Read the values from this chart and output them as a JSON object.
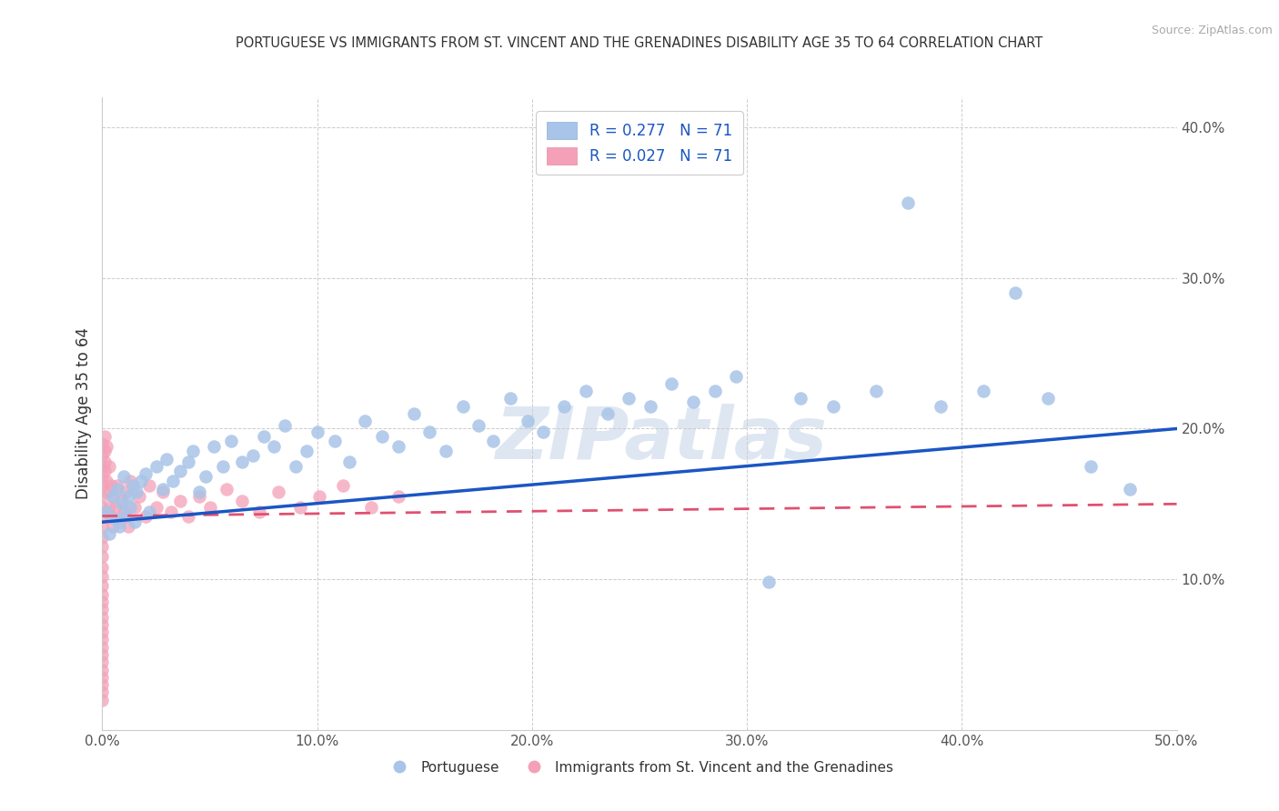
{
  "title": "PORTUGUESE VS IMMIGRANTS FROM ST. VINCENT AND THE GRENADINES DISABILITY AGE 35 TO 64 CORRELATION CHART",
  "source": "Source: ZipAtlas.com",
  "ylabel": "Disability Age 35 to 64",
  "xlim": [
    0.0,
    0.5
  ],
  "ylim": [
    0.0,
    0.42
  ],
  "xticks": [
    0.0,
    0.1,
    0.2,
    0.3,
    0.4,
    0.5
  ],
  "yticks": [
    0.0,
    0.1,
    0.2,
    0.3,
    0.4
  ],
  "xticklabels": [
    "0.0%",
    "10.0%",
    "20.0%",
    "30.0%",
    "40.0%",
    "50.0%"
  ],
  "yticklabels_right": [
    "",
    "10.0%",
    "20.0%",
    "30.0%",
    "40.0%"
  ],
  "r_portuguese": 0.277,
  "n_portuguese": 71,
  "r_immigrants": 0.027,
  "n_immigrants": 71,
  "blue_color": "#a8c4e8",
  "pink_color": "#f4a0b8",
  "blue_line_color": "#1a56c4",
  "pink_line_color": "#e05070",
  "legend_label_portuguese": "Portuguese",
  "legend_label_immigrants": "Immigrants from St. Vincent and the Grenadines",
  "portuguese_x": [
    0.002,
    0.003,
    0.005,
    0.006,
    0.007,
    0.008,
    0.009,
    0.01,
    0.011,
    0.012,
    0.013,
    0.014,
    0.015,
    0.016,
    0.018,
    0.02,
    0.022,
    0.025,
    0.028,
    0.03,
    0.033,
    0.036,
    0.04,
    0.042,
    0.045,
    0.048,
    0.052,
    0.056,
    0.06,
    0.065,
    0.07,
    0.075,
    0.08,
    0.085,
    0.09,
    0.095,
    0.1,
    0.108,
    0.115,
    0.122,
    0.13,
    0.138,
    0.145,
    0.152,
    0.16,
    0.168,
    0.175,
    0.182,
    0.19,
    0.198,
    0.205,
    0.215,
    0.225,
    0.235,
    0.245,
    0.255,
    0.265,
    0.275,
    0.285,
    0.295,
    0.31,
    0.325,
    0.34,
    0.36,
    0.375,
    0.39,
    0.41,
    0.425,
    0.44,
    0.46,
    0.478
  ],
  "portuguese_y": [
    0.145,
    0.13,
    0.155,
    0.14,
    0.16,
    0.135,
    0.15,
    0.168,
    0.142,
    0.155,
    0.148,
    0.162,
    0.138,
    0.158,
    0.165,
    0.17,
    0.145,
    0.175,
    0.16,
    0.18,
    0.165,
    0.172,
    0.178,
    0.185,
    0.158,
    0.168,
    0.188,
    0.175,
    0.192,
    0.178,
    0.182,
    0.195,
    0.188,
    0.202,
    0.175,
    0.185,
    0.198,
    0.192,
    0.178,
    0.205,
    0.195,
    0.188,
    0.21,
    0.198,
    0.185,
    0.215,
    0.202,
    0.192,
    0.22,
    0.205,
    0.198,
    0.215,
    0.225,
    0.21,
    0.22,
    0.215,
    0.23,
    0.218,
    0.225,
    0.235,
    0.098,
    0.22,
    0.215,
    0.225,
    0.35,
    0.215,
    0.225,
    0.29,
    0.22,
    0.175,
    0.16
  ],
  "immigrants_x": [
    0.0,
    0.0,
    0.0,
    0.0,
    0.0,
    0.0,
    0.0,
    0.0,
    0.0,
    0.0,
    0.0,
    0.0,
    0.0,
    0.0,
    0.0,
    0.0,
    0.0,
    0.0,
    0.0,
    0.0,
    0.0,
    0.0,
    0.0,
    0.0,
    0.0,
    0.0,
    0.0,
    0.0,
    0.0,
    0.0,
    0.001,
    0.001,
    0.001,
    0.001,
    0.002,
    0.002,
    0.002,
    0.003,
    0.003,
    0.004,
    0.004,
    0.005,
    0.005,
    0.006,
    0.007,
    0.008,
    0.009,
    0.01,
    0.011,
    0.012,
    0.013,
    0.015,
    0.017,
    0.02,
    0.022,
    0.025,
    0.028,
    0.032,
    0.036,
    0.04,
    0.045,
    0.05,
    0.058,
    0.065,
    0.073,
    0.082,
    0.092,
    0.101,
    0.112,
    0.125,
    0.138
  ],
  "immigrants_y": [
    0.19,
    0.182,
    0.175,
    0.168,
    0.162,
    0.155,
    0.148,
    0.142,
    0.135,
    0.128,
    0.122,
    0.115,
    0.108,
    0.102,
    0.096,
    0.09,
    0.085,
    0.08,
    0.075,
    0.07,
    0.065,
    0.06,
    0.055,
    0.05,
    0.045,
    0.04,
    0.035,
    0.03,
    0.025,
    0.02,
    0.195,
    0.185,
    0.178,
    0.172,
    0.188,
    0.165,
    0.158,
    0.175,
    0.148,
    0.162,
    0.142,
    0.155,
    0.135,
    0.148,
    0.162,
    0.138,
    0.152,
    0.145,
    0.158,
    0.135,
    0.165,
    0.148,
    0.155,
    0.142,
    0.162,
    0.148,
    0.158,
    0.145,
    0.152,
    0.142,
    0.155,
    0.148,
    0.16,
    0.152,
    0.145,
    0.158,
    0.148,
    0.155,
    0.162,
    0.148,
    0.155
  ]
}
